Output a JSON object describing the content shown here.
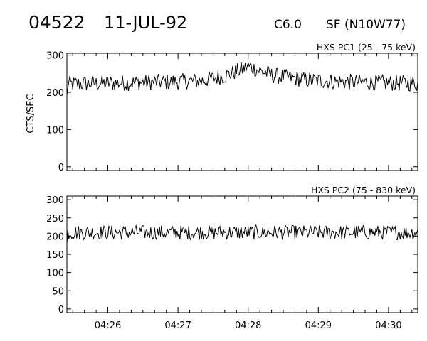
{
  "header": {
    "event_number": "04522",
    "date": "11-JUL-92",
    "goes_class": "C6.0",
    "location": "SF (N10W77)"
  },
  "chart_data": [
    {
      "type": "line",
      "title": "HXS PC1 (25 - 75 keV)",
      "ylabel": "CTS/SEC",
      "xlabel": "",
      "ylim": [
        -10,
        305
      ],
      "yticks": [
        0,
        100,
        200,
        300
      ],
      "x_range": [
        "04:25:25",
        "04:30:25"
      ],
      "xticks": [
        "04:26",
        "04:27",
        "04:28",
        "04:29",
        "04:30"
      ],
      "series": [
        {
          "x": [
            "04:25:25",
            "04:25:50",
            "04:26:20",
            "04:26:50",
            "04:27:20",
            "04:27:40",
            "04:27:55",
            "04:28:00",
            "04:28:20",
            "04:28:50",
            "04:29:20",
            "04:29:50",
            "04:30:25"
          ],
          "values": [
            222,
            224,
            226,
            228,
            231,
            244,
            262,
            270,
            246,
            233,
            229,
            226,
            224
          ],
          "noise_amplitude": 22
        }
      ]
    },
    {
      "type": "line",
      "title": "HXS PC2 (75 - 830 keV)",
      "ylabel": "",
      "xlabel": "",
      "ylim": [
        -10,
        310
      ],
      "yticks": [
        0,
        50,
        100,
        150,
        200,
        250,
        300
      ],
      "x_range": [
        "04:25:25",
        "04:30:25"
      ],
      "xticks": [
        "04:26",
        "04:27",
        "04:28",
        "04:29",
        "04:30"
      ],
      "series": [
        {
          "x": [
            "04:25:25",
            "04:30:25"
          ],
          "values": [
            210,
            210
          ],
          "noise_amplitude": 20
        }
      ]
    }
  ]
}
